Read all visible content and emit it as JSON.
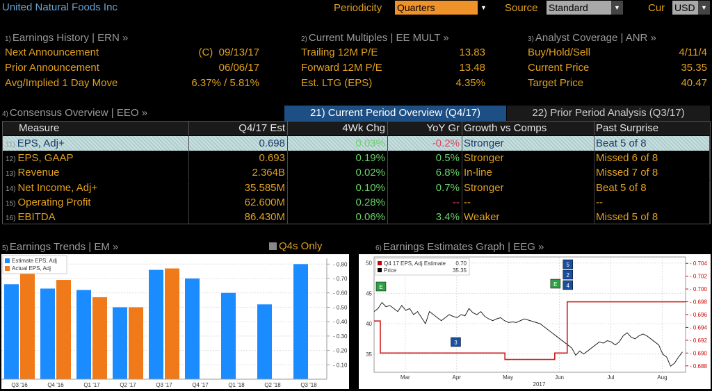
{
  "header": {
    "company": "United Natural Foods Inc",
    "periodicity_label": "Periodicity",
    "periodicity_value": "Quarters",
    "source_label": "Source",
    "source_value": "Standard",
    "cur_label": "Cur",
    "cur_value": "USD"
  },
  "earnings_history": {
    "num": "1)",
    "title": "Earnings History | ERN »",
    "rows": [
      {
        "label": "Next Announcement",
        "value": "(C)  09/13/17"
      },
      {
        "label": "Prior Announcement",
        "value": "06/06/17"
      },
      {
        "label": "Avg/Implied 1 Day Move",
        "value": "6.37% / 5.81%"
      }
    ]
  },
  "current_multiples": {
    "num": "2)",
    "title": "Current Multiples | EE MULT »",
    "rows": [
      {
        "label": "Trailing 12M P/E",
        "value": "13.83"
      },
      {
        "label": "Forward 12M P/E",
        "value": "13.48"
      },
      {
        "label": "Est. LTG (EPS)",
        "value": "4.35%"
      }
    ]
  },
  "analyst_coverage": {
    "num": "3)",
    "title": "Analyst Coverage | ANR »",
    "rows": [
      {
        "label": "Buy/Hold/Sell",
        "value": "4/11/4"
      },
      {
        "label": "Current Price",
        "value": "35.35"
      },
      {
        "label": "Target Price",
        "value": "40.47"
      }
    ]
  },
  "consensus": {
    "num": "4)",
    "title": "Consensus Overview | EEO »",
    "tab_current": "21) Current Period Overview (Q4/17)",
    "tab_prior": "22) Prior Period Analysis (Q3/17)"
  },
  "table": {
    "headers": [
      "Measure",
      "Q4/17 Est",
      "4Wk Chg",
      "YoY Gr",
      "Growth vs Comps",
      "Past Surprise"
    ],
    "rows": [
      {
        "num": "11)",
        "measure": "EPS, Adj+",
        "est": "0.698",
        "chg": "0.03%",
        "yoy": "-0.2%",
        "comps": "Stronger",
        "surprise": "Beat 5 of 8"
      },
      {
        "num": "12)",
        "measure": "EPS, GAAP",
        "est": "0.693",
        "chg": "0.19%",
        "yoy": "0.5%",
        "comps": "Stronger",
        "surprise": "Missed 6 of 8"
      },
      {
        "num": "13)",
        "measure": "Revenue",
        "est": "2.364B",
        "chg": "0.02%",
        "yoy": "6.8%",
        "comps": "In-line",
        "surprise": "Missed 7 of 8"
      },
      {
        "num": "14)",
        "measure": "Net Income, Adj+",
        "est": "35.585M",
        "chg": "0.10%",
        "yoy": "0.7%",
        "comps": "Stronger",
        "surprise": "Beat 5 of 8"
      },
      {
        "num": "15)",
        "measure": "Operating Profit",
        "est": "62.600M",
        "chg": "0.28%",
        "yoy": "--",
        "comps": "--",
        "surprise": "--"
      },
      {
        "num": "16)",
        "measure": "EBITDA",
        "est": "86.430M",
        "chg": "0.06%",
        "yoy": "3.4%",
        "comps": "Weaker",
        "surprise": "Missed 5 of 8"
      }
    ]
  },
  "earnings_trends": {
    "num": "5)",
    "title": "Earnings Trends | EM »",
    "toggle": "Q4s Only"
  },
  "estimates_graph": {
    "num": "6)",
    "title": "Earnings Estimates Graph | EEG »"
  },
  "chart_data": [
    {
      "type": "bar",
      "categories": [
        "Q3 '16",
        "Q4 '16",
        "Q1 '17",
        "Q2 '17",
        "Q3 '17",
        "Q4 '17",
        "Q1 '18",
        "Q2 '18",
        "Q3 '18"
      ],
      "series": [
        {
          "name": "Estimate EPS, Adj",
          "color": "#1a8cff",
          "values": [
            0.66,
            0.63,
            0.62,
            0.5,
            0.76,
            0.7,
            0.6,
            0.52,
            0.8
          ]
        },
        {
          "name": "Actual EPS, Adj",
          "color": "#f07a1a",
          "values": [
            0.74,
            0.69,
            0.57,
            0.5,
            0.77,
            null,
            null,
            null,
            null
          ]
        }
      ],
      "yticks": [
        "0.80",
        "0.70",
        "0.60",
        "0.50",
        "0.40",
        "0.30",
        "0.20",
        "0.10"
      ],
      "ylim": [
        0,
        0.84
      ]
    },
    {
      "type": "line",
      "legend": [
        {
          "label": "Q4 17 EPS, Adj Estimate",
          "value": "0.70",
          "color": "#cc0000"
        },
        {
          "label": "Price",
          "value": "35.35",
          "color": "#000000"
        }
      ],
      "xticks": [
        "Mar",
        "Apr",
        "May",
        "Jun",
        "Jul",
        "Aug"
      ],
      "year_label": "2017",
      "left_yticks": [
        "50",
        "45",
        "40",
        "35"
      ],
      "right_yticks": [
        "0.704",
        "0.702",
        "0.700",
        "0.698",
        "0.696",
        "0.694",
        "0.692",
        "0.690",
        "0.688"
      ],
      "price": [
        42,
        42.5,
        43.5,
        42.8,
        43,
        42.5,
        42,
        43,
        42.2,
        42.5,
        41.5,
        42,
        41,
        40,
        42,
        41.5,
        41,
        40.5,
        41,
        41.5,
        41.2,
        41,
        41.5,
        41.3,
        42.5,
        41.8,
        41.5,
        42,
        41.2,
        40.8,
        40.5,
        40.8,
        41,
        40.5,
        40.2,
        40.3,
        40.2,
        40.5,
        40.8,
        40.6,
        40.4,
        40.2,
        40,
        39.5,
        39,
        38.5,
        38,
        37.5,
        37,
        36.5,
        36,
        34.8,
        35.5,
        35,
        35.5,
        36,
        36.5,
        37,
        36.8,
        37.2,
        37,
        36.5,
        37,
        38,
        38.5,
        37.8,
        37.5,
        38,
        38.3,
        38,
        37.5,
        37,
        36.5,
        35,
        34.5,
        33,
        33.5,
        34.5,
        35.35
      ],
      "estimate_segments": [
        {
          "from": 0,
          "to": 0.02,
          "value": 0.695
        },
        {
          "from": 0.02,
          "to": 0.39,
          "value": 0.69
        },
        {
          "from": 0.39,
          "to": 0.42,
          "value": 0.69
        },
        {
          "from": 0.42,
          "to": 0.58,
          "value": 0.689
        },
        {
          "from": 0.58,
          "to": 0.62,
          "value": 0.69
        },
        {
          "from": 0.62,
          "to": 1,
          "value": 0.698
        }
      ],
      "markers": [
        {
          "label": "E",
          "type": "green",
          "x": 0.02
        },
        {
          "label": "3",
          "type": "blue",
          "x": 0.26
        },
        {
          "label": "E",
          "type": "green",
          "x": 0.58
        },
        {
          "label": "5",
          "type": "blue",
          "x": 0.62
        },
        {
          "label": "2",
          "type": "blue",
          "x": 0.62
        },
        {
          "label": "4",
          "type": "blue",
          "x": 0.62
        }
      ]
    }
  ]
}
